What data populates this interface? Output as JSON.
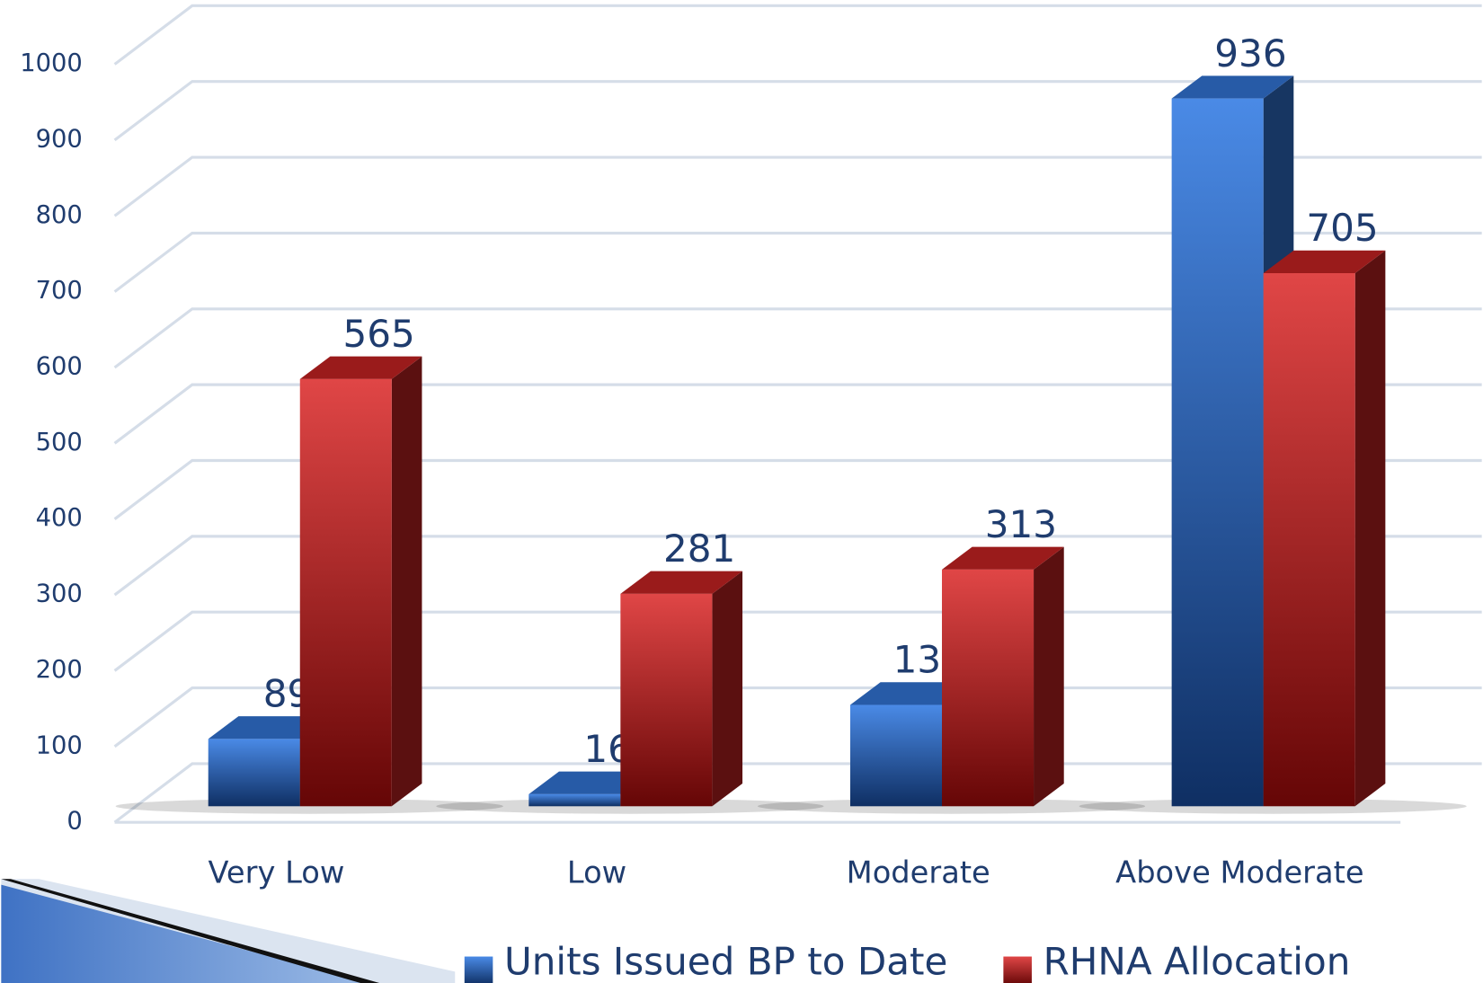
{
  "chart_data": {
    "type": "bar",
    "categories": [
      "Very Low",
      "Low",
      "Moderate",
      "Above Moderate"
    ],
    "series": [
      {
        "name": "Units Issued BP to Date",
        "color": "#2e6bc4",
        "values": [
          89,
          16,
          134,
          936
        ]
      },
      {
        "name": "RHNA Allocation",
        "color": "#b52020",
        "values": [
          565,
          281,
          313,
          705
        ]
      }
    ],
    "ylim": [
      0,
      1000
    ],
    "yticks": [
      0,
      100,
      200,
      300,
      400,
      500,
      600,
      700,
      800,
      900,
      1000
    ],
    "grid": true,
    "legend": "bottom"
  }
}
